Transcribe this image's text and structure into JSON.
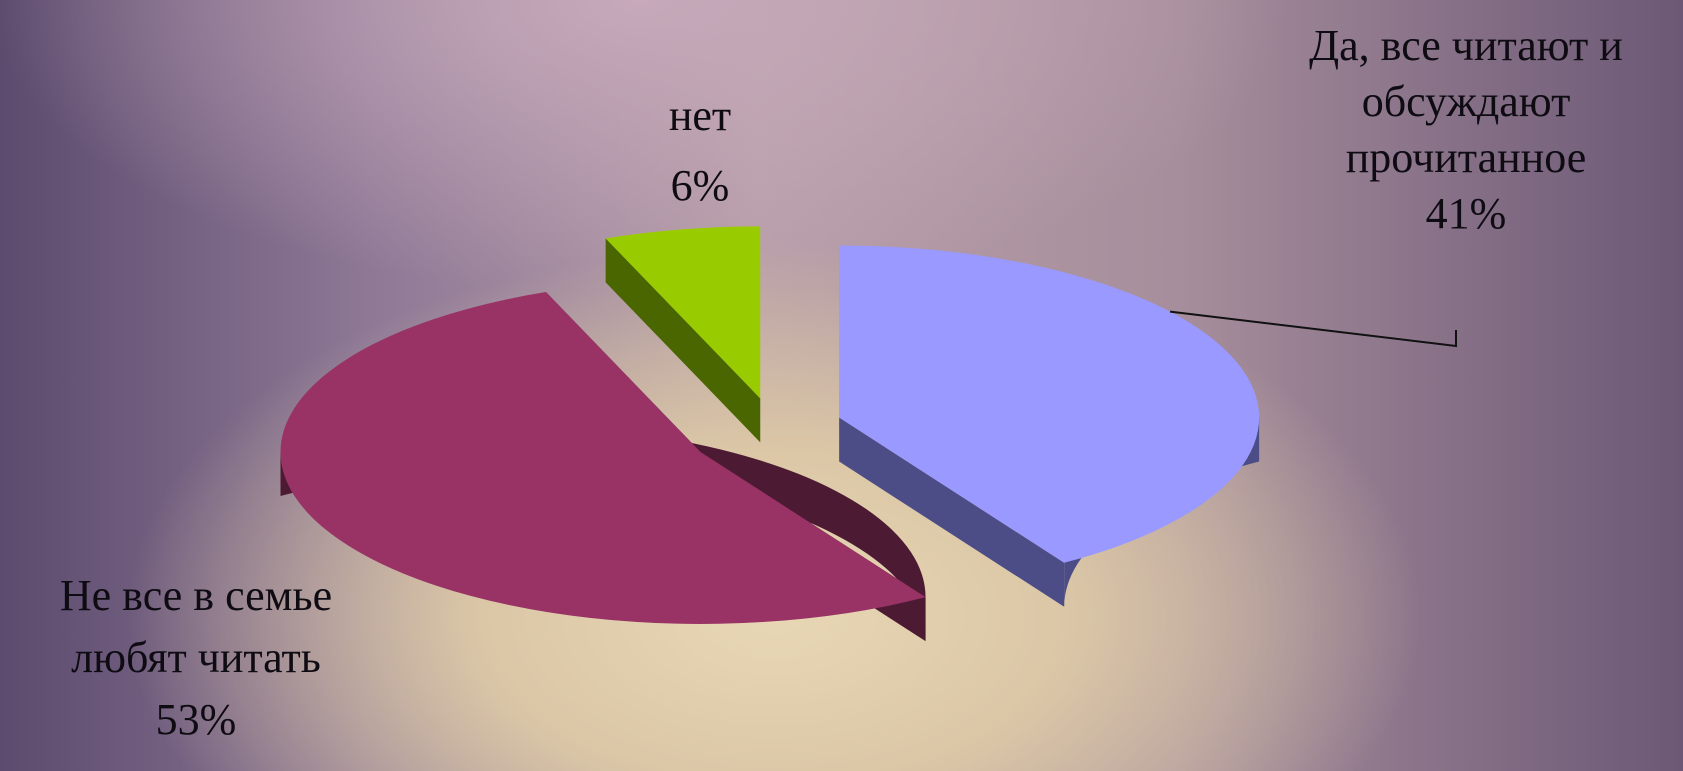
{
  "chart_data": {
    "type": "pie",
    "title": "",
    "slices": [
      {
        "label_lines": [
          "Да, все читают и",
          "обсуждают",
          "прочитанное"
        ],
        "percent_label": "41%",
        "value": 41,
        "color": "#9999ff",
        "side_color": "#4c4c86"
      },
      {
        "label_lines": [
          "нет"
        ],
        "percent_label": "6%",
        "value": 6,
        "color": "#99cc00",
        "side_color": "#4a6600"
      },
      {
        "label_lines": [
          "Не все в семье",
          "любят читать"
        ],
        "percent_label": "53%",
        "value": 53,
        "color": "#993366",
        "side_color": "#4d1a33"
      }
    ],
    "exploded": true,
    "three_d": true,
    "legend": "none"
  }
}
